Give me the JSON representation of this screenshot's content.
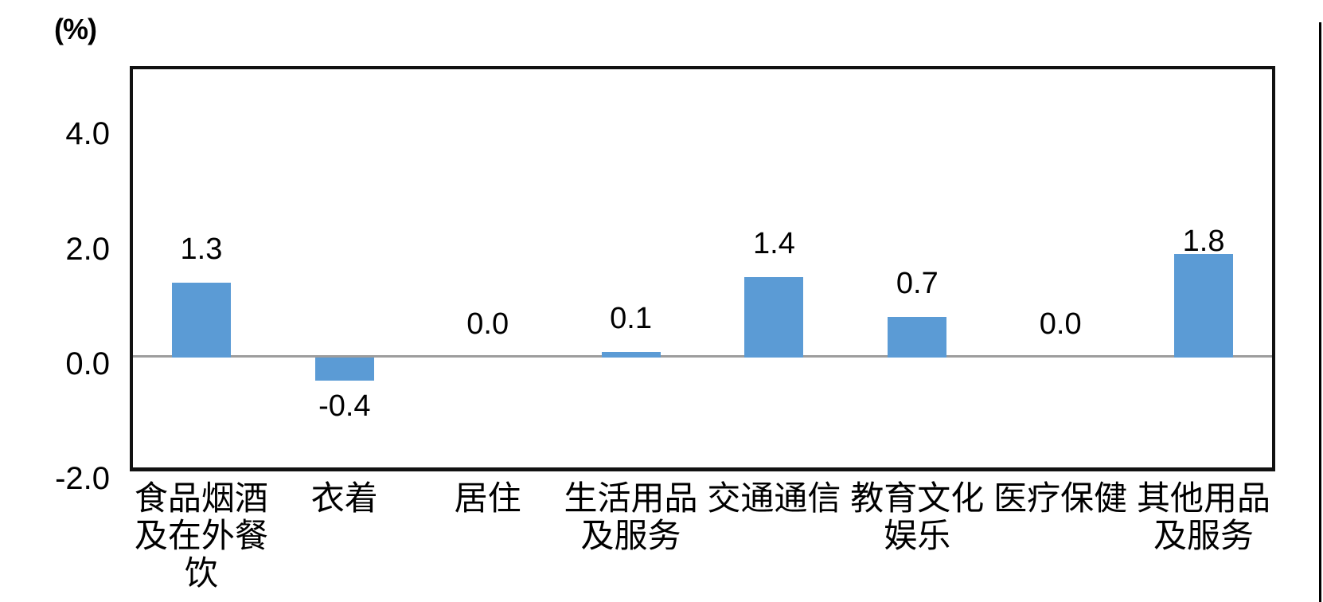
{
  "unit_label": "(%)",
  "colors": {
    "bar": "#5B9BD5",
    "zero_line": "#9D9D9D",
    "plot_border": "#111111",
    "text": "#000000",
    "background": "#FFFFFF"
  },
  "chart_data": {
    "type": "bar",
    "title": "",
    "unit_label": "(%)",
    "categories": [
      "食品烟酒\n及在外餐\n饮",
      "衣着",
      "居住",
      "生活用品\n及服务",
      "交通通信",
      "教育文化\n娱乐",
      "医疗保健",
      "其他用品\n及服务"
    ],
    "values": [
      1.3,
      -0.4,
      0.0,
      0.1,
      1.4,
      0.7,
      0.0,
      1.8
    ],
    "data_labels": [
      "1.3",
      "-0.4",
      "0.0",
      "0.1",
      "1.4",
      "0.7",
      "0.0",
      "1.8"
    ],
    "xlabel": "",
    "ylabel": "(%)",
    "ylim": [
      -2.0,
      5.0
    ],
    "yticks": [
      4.0,
      2.0,
      0.0,
      -2.0
    ],
    "ytick_labels": [
      "4.0",
      "2.0",
      "0.0",
      "-2.0"
    ],
    "grid": false,
    "legend": "none",
    "bar_color": "#5B9BD5",
    "label_dy": [
      0,
      0,
      0,
      0,
      0,
      0,
      0,
      26
    ]
  }
}
